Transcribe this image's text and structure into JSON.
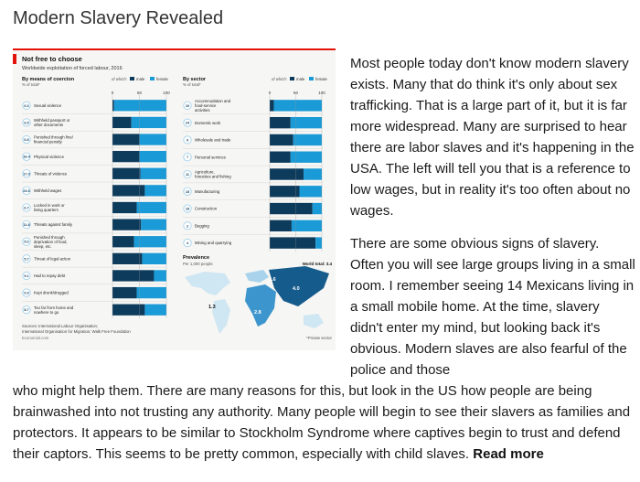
{
  "post": {
    "title": "Modern Slavery Revealed",
    "paragraph1": " Most people today don't know modern slavery exists. Many that do think it's only about sex trafficking. That is a large part of it, but it is far more widespread. Many are surprised to hear there are labor slaves and it's happening in the USA. The left will tell you that is a reference to low wages, but in reality it's too often about no wages.",
    "paragraph2_top": "There are some obvious signs of slavery. Often you will see large groups living in a small room. I remember seeing 14 Mexicans living in a small mobile home. At the time, slavery didn't enter my mind, but looking back it's obvious. Modern slaves are also fearful of the police and those",
    "paragraph2_bottom": "who might help them. There are many reasons for this, but look in the US how people are being brainwashed into not trusting any authority. Many people will begin to see their slavers as families and protectors. It appears to be similar to Stockholm Syndrome where captives begin to trust and defend their captors. This seems to be pretty common, especially with child slaves. ",
    "read_more": "Read more"
  },
  "infographic": {
    "title": "Not free to choose",
    "subtitle": "Worldwide exploitation of forced labour, 2016",
    "coercion_header": "By means of coercion",
    "coercion_sub": "% of total*",
    "sector_header": "By sector",
    "sector_sub": "% of total*",
    "of_which": "of which:",
    "male": "male",
    "female": "female",
    "axis_ticks": [
      "0",
      "50",
      "100"
    ],
    "prevalence_title": "Prevalence",
    "prevalence_sub": "Per 1,000 people",
    "world_total": "World total: 3.4",
    "private_note": "*Private sector",
    "sources_line1": "Sources: International Labour Organisation;",
    "sources_line2": "International Organisation for Migration; Walk Free Foundation",
    "credit": "Economist.com",
    "colors": {
      "male": "#0d3b5c",
      "female": "#1a9ad6",
      "accent": "#e3120b"
    },
    "map_values": [
      "3.6",
      "4.0",
      "1.3",
      "2.8"
    ]
  },
  "chart_data": [
    {
      "type": "bar",
      "title": "By means of coercion",
      "ylabel": "% of total*",
      "categories": [
        "Sexual violence",
        "Withheld passport or other documents",
        "Punished through fine/ financial penalty",
        "Physical violence",
        "Threats of violence",
        "Withheld wages",
        "Locked in work or living quarters",
        "Threats against family",
        "Punished through deprivation of food, sleep, etc.",
        "Threat of legal action",
        "Had to repay debt",
        "Kept drunk/drugged",
        "Too far from home and nowhere to go"
      ],
      "share_labels": [
        "6.3",
        "6.5",
        "6.8",
        "16.4",
        "17.0",
        "23.6",
        "6.7",
        "11.8",
        "5.0",
        "5.7",
        "9.1",
        "0.9",
        "8.7"
      ],
      "xlim": [
        0,
        100
      ],
      "series": [
        {
          "name": "male",
          "values": [
            3,
            35,
            50,
            50,
            52,
            60,
            45,
            53,
            40,
            55,
            77,
            45,
            60
          ]
        },
        {
          "name": "female",
          "values": [
            97,
            65,
            50,
            50,
            48,
            40,
            55,
            47,
            60,
            45,
            23,
            55,
            40
          ]
        }
      ]
    },
    {
      "type": "bar",
      "title": "By sector",
      "ylabel": "% of total*",
      "categories": [
        "Accommodation and food-service activities",
        "Domestic work",
        "Wholesale and trade",
        "Personal services",
        "Agriculture, forestries and fishing",
        "Manufacturing",
        "Construction",
        "Begging",
        "Mining and quarrying"
      ],
      "share_labels": [
        "10",
        "24",
        "9",
        "7",
        "11",
        "15",
        "18",
        "2",
        "4"
      ],
      "xlim": [
        0,
        100
      ],
      "series": [
        {
          "name": "male",
          "values": [
            8,
            40,
            45,
            40,
            65,
            57,
            82,
            42,
            88
          ]
        },
        {
          "name": "female",
          "values": [
            92,
            60,
            55,
            60,
            35,
            43,
            18,
            58,
            12
          ]
        }
      ]
    }
  ]
}
